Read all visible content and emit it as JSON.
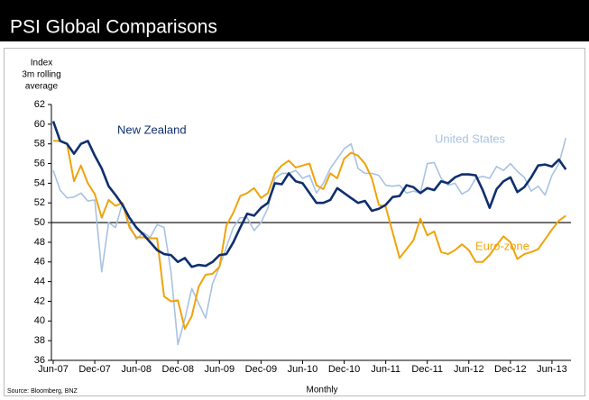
{
  "chart_data": {
    "type": "line",
    "title": "PSI Global Comparisons",
    "ylabel": [
      "Index",
      "3m rolling",
      "average"
    ],
    "xlabel": "Monthly",
    "source": "Source: Bloomberg, BNZ",
    "categories": [
      "Jun-07",
      null,
      null,
      null,
      null,
      null,
      "Dec-07",
      null,
      null,
      null,
      null,
      null,
      "Jun-08",
      null,
      null,
      null,
      null,
      null,
      "Dec-08",
      null,
      null,
      null,
      null,
      null,
      "Jun-09",
      null,
      null,
      null,
      null,
      null,
      "Dec-09",
      null,
      null,
      null,
      null,
      null,
      "Jun-10",
      null,
      null,
      null,
      null,
      null,
      "Dec-10",
      null,
      null,
      null,
      null,
      null,
      "Jun-11",
      null,
      null,
      null,
      null,
      null,
      "Dec-11",
      null,
      null,
      null,
      null,
      null,
      "Jun-12",
      null,
      null,
      null,
      null,
      null,
      "Dec-12",
      null,
      null,
      null,
      null,
      null,
      "Jun-13",
      null,
      null
    ],
    "ylim": [
      36,
      62
    ],
    "yticks": [
      36,
      38,
      40,
      42,
      44,
      46,
      48,
      50,
      52,
      54,
      56,
      58,
      60,
      62
    ],
    "reference_line": 50,
    "grid": false,
    "series": [
      {
        "name": "New Zealand",
        "color": "#0f2f6e",
        "values": [
          60.3,
          58.3,
          58.0,
          57.0,
          58.0,
          58.3,
          56.8,
          55.5,
          53.7,
          52.8,
          51.8,
          50.5,
          49.5,
          48.8,
          48.0,
          47.2,
          46.8,
          46.7,
          46.0,
          46.4,
          45.5,
          45.7,
          45.6,
          46.0,
          46.7,
          46.8,
          48.0,
          49.5,
          50.9,
          50.7,
          51.5,
          52.0,
          54.0,
          53.9,
          55.0,
          54.2,
          54.0,
          53.0,
          52.0,
          52.0,
          52.3,
          53.5,
          53.0,
          52.5,
          52.0,
          52.2,
          51.2,
          51.4,
          51.8,
          52.6,
          52.7,
          53.8,
          53.6,
          53.0,
          53.5,
          53.3,
          54.2,
          54.0,
          54.6,
          54.9,
          54.9,
          54.8,
          53.3,
          51.5,
          53.4,
          54.2,
          54.6,
          53.1,
          53.6,
          54.6,
          55.8,
          55.9,
          55.7,
          56.4,
          55.4
        ]
      },
      {
        "name": "United States",
        "color": "#a8c2e2",
        "values": [
          55.3,
          53.3,
          52.5,
          52.6,
          53.0,
          52.2,
          52.3,
          45.0,
          50.0,
          49.5,
          52.0,
          49.8,
          48.3,
          49.0,
          48.5,
          49.8,
          49.5,
          45.0,
          37.6,
          40.2,
          43.3,
          41.8,
          40.3,
          43.8,
          45.5,
          47.5,
          49.5,
          50.5,
          50.5,
          49.2,
          50.0,
          51.5,
          54.5,
          55.0,
          55.0,
          55.3,
          54.5,
          54.8,
          53.0,
          54.0,
          55.5,
          56.5,
          57.5,
          58.0,
          55.5,
          55.0,
          55.0,
          54.8,
          53.8,
          53.7,
          53.8,
          53.0,
          53.2,
          53.0,
          56.0,
          56.1,
          54.5,
          53.8,
          54.0,
          52.9,
          53.3,
          54.5,
          54.7,
          54.5,
          55.7,
          55.3,
          56.0,
          55.2,
          54.6,
          53.2,
          53.7,
          52.8,
          54.8,
          56.0,
          58.6
        ]
      },
      {
        "name": "Euro-zone",
        "color": "#f0a30a",
        "values": [
          58.3,
          58.3,
          58.0,
          54.2,
          55.8,
          54.0,
          52.9,
          50.5,
          52.3,
          51.7,
          52.0,
          49.5,
          48.5,
          48.5,
          48.4,
          48.4,
          42.5,
          42.0,
          42.1,
          39.2,
          40.5,
          43.5,
          44.7,
          44.8,
          45.5,
          49.7,
          51.0,
          52.7,
          53.0,
          53.5,
          52.5,
          53.0,
          55.0,
          55.8,
          56.3,
          55.6,
          55.8,
          56.0,
          53.8,
          53.4,
          55.0,
          54.5,
          56.5,
          57.1,
          56.8,
          56.0,
          54.5,
          51.8,
          51.6,
          49.0,
          46.4,
          47.3,
          48.2,
          50.4,
          48.7,
          49.1,
          47.0,
          46.8,
          47.2,
          47.8,
          47.2,
          46.0,
          46.0,
          46.7,
          47.7,
          48.6,
          48.0,
          46.3,
          46.8,
          47.0,
          47.3,
          48.3,
          49.3,
          50.2,
          50.7
        ]
      }
    ]
  }
}
